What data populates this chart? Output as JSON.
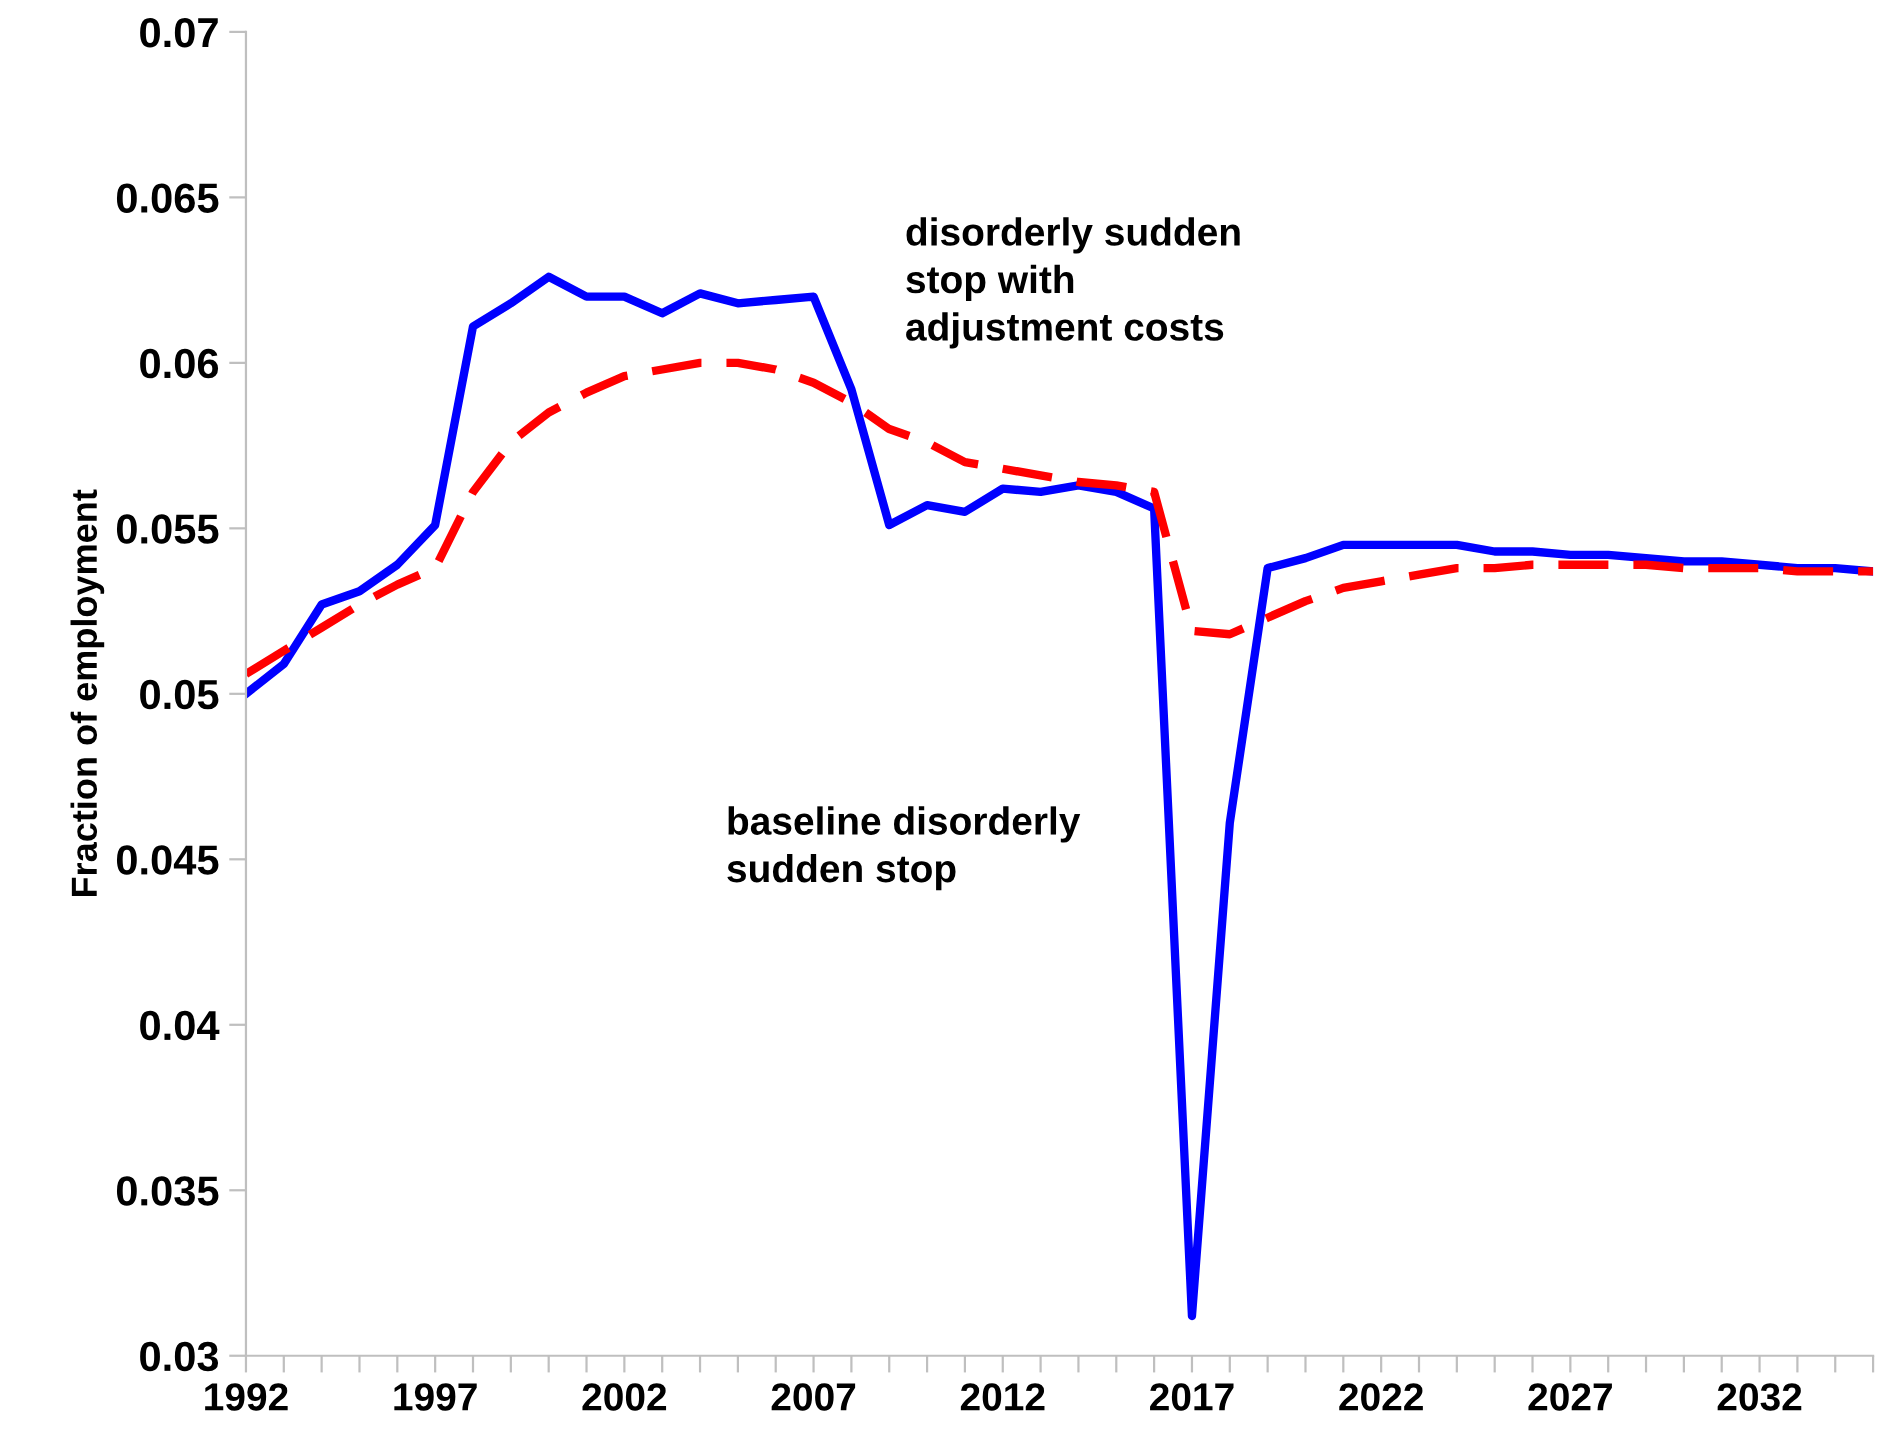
{
  "chart_data": {
    "type": "line",
    "ylabel": "Fraction of employment",
    "categories": [
      "1992",
      null,
      null,
      null,
      null,
      "1997",
      null,
      null,
      null,
      null,
      "2002",
      null,
      null,
      null,
      null,
      "2007",
      null,
      null,
      null,
      null,
      "2012",
      null,
      null,
      null,
      null,
      "2017",
      null,
      null,
      null,
      null,
      "2022",
      null,
      null,
      null,
      null,
      "2027",
      null,
      null,
      null,
      null,
      "2032",
      null,
      null,
      null
    ],
    "series": [
      {
        "color": "#0000ff",
        "line_style": "solid",
        "values": [
          0.05,
          0.0509,
          0.0527,
          0.0531,
          0.0539,
          0.0551,
          0.0611,
          0.0618,
          0.0626,
          0.062,
          0.062,
          0.0615,
          0.0621,
          0.0618,
          0.0619,
          0.062,
          0.0592,
          0.0551,
          0.0557,
          0.0555,
          0.0562,
          0.0561,
          0.0563,
          0.0561,
          0.0556,
          0.0312,
          0.0461,
          0.0538,
          0.0541,
          0.0545,
          0.0545,
          0.0545,
          0.0545,
          0.0543,
          0.0543,
          0.0542,
          0.0542,
          0.0541,
          0.054,
          0.054,
          0.0539,
          0.0538,
          0.0538,
          0.0537
        ]
      },
      {
        "color": "#ff0000",
        "line_style": "dashed",
        "values": [
          0.0506,
          0.0513,
          0.052,
          0.0527,
          0.0533,
          0.0538,
          0.0561,
          0.0576,
          0.0585,
          0.0591,
          0.0596,
          0.0598,
          0.06,
          0.06,
          0.0598,
          0.0594,
          0.0588,
          0.058,
          0.0576,
          0.057,
          0.0568,
          0.0566,
          0.0564,
          0.0563,
          0.0561,
          0.0519,
          0.0518,
          0.0523,
          0.0528,
          0.0532,
          0.0534,
          0.0536,
          0.0538,
          0.0538,
          0.0539,
          0.0539,
          0.0539,
          0.0539,
          0.0538,
          0.0538,
          0.0538,
          0.0537,
          0.0537,
          0.0537
        ]
      }
    ],
    "ylim": [
      0.03,
      0.07
    ],
    "yticks": [
      0.03,
      0.035,
      0.04,
      0.045,
      0.05,
      0.055,
      0.06,
      0.065,
      0.07
    ],
    "annotations": [
      "disorderly sudden\nstop with\nadjustment costs",
      "baseline disorderly\nsudden stop"
    ],
    "grid": false,
    "legend": false,
    "marker": "none"
  }
}
